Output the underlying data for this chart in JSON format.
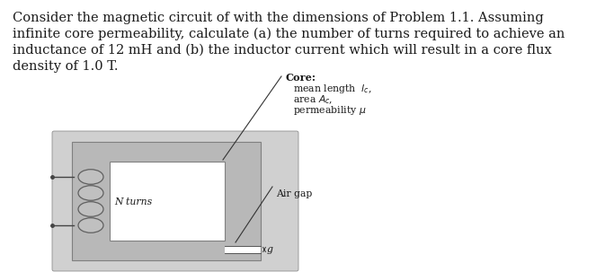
{
  "fig_bg": "#ffffff",
  "text_lines": [
    "Consider the magnetic circuit of with the dimensions of Problem 1.1. Assuming",
    "infinite core permeability, calculate (a) the number of turns required to achieve an",
    "inductance of 12 mH and (b) the inductor current which will result in a core flux",
    "density of 1.0 T."
  ],
  "text_fontsize": 10.5,
  "text_color": "#1a1a1a",
  "annotation_fontsize": 7.8,
  "core_label": "Core:",
  "mean_length_label": "mean length  $l_c$,",
  "area_label": "area $A_c$,",
  "permeability_label": "permeability $\\mu$",
  "n_turns_label": "N turns",
  "air_gap_label": "Air gap",
  "g_label": "g",
  "diag_gray_light": "#d0d0d0",
  "diag_gray_mid": "#b8b8b8",
  "diag_white": "#ffffff",
  "diag_edge": "#808080"
}
